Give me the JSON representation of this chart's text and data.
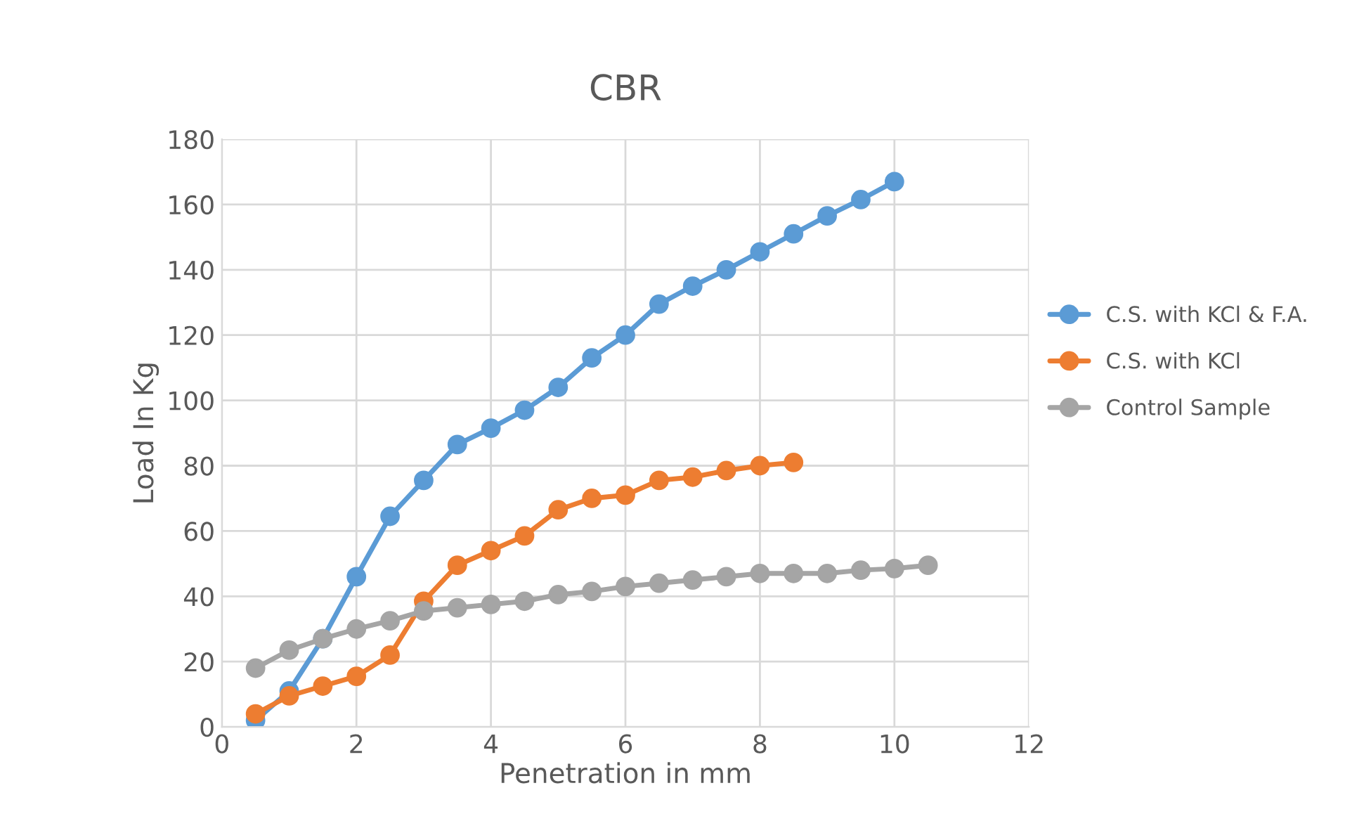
{
  "chart_data": {
    "type": "line",
    "title": "CBR",
    "xlabel": "Penetration in mm",
    "ylabel": "Load In Kg",
    "x": [
      0.5,
      1,
      1.5,
      2,
      2.5,
      3,
      3.5,
      4,
      4.5,
      5,
      5.5,
      6,
      6.5,
      7,
      7.5,
      8,
      8.5,
      9,
      9.5,
      10,
      10.5
    ],
    "series": [
      {
        "name": "C.S. with KCl & F.A.",
        "color": "#5b9bd5",
        "values": [
          2,
          11,
          27,
          46,
          64.5,
          75.5,
          86.5,
          91.5,
          97,
          104,
          113,
          120,
          129.5,
          135,
          140,
          145.5,
          151,
          156.5,
          161.5,
          167,
          null
        ]
      },
      {
        "name": "C.S. with KCl",
        "color": "#ed7d31",
        "values": [
          4,
          9.5,
          12.5,
          15.5,
          22,
          38.5,
          49.5,
          54,
          58.5,
          66.5,
          70,
          71,
          75.5,
          76.5,
          78.5,
          80,
          81,
          null,
          null,
          null,
          null
        ]
      },
      {
        "name": "Control Sample",
        "color": "#a5a5a5",
        "values": [
          18,
          23.5,
          27,
          30,
          32.5,
          35.5,
          36.5,
          37.5,
          38.5,
          40.5,
          41.5,
          43,
          44,
          45,
          46,
          47,
          47,
          47,
          48,
          48.5,
          49.5
        ]
      }
    ],
    "xlim": [
      0,
      12
    ],
    "xticks": [
      0,
      2,
      4,
      6,
      8,
      10,
      12
    ],
    "ylim": [
      0,
      180
    ],
    "yticks": [
      0,
      20,
      40,
      60,
      80,
      100,
      120,
      140,
      160,
      180
    ],
    "grid": true,
    "legend": "right",
    "marker": "circle",
    "line_style": "solid"
  }
}
